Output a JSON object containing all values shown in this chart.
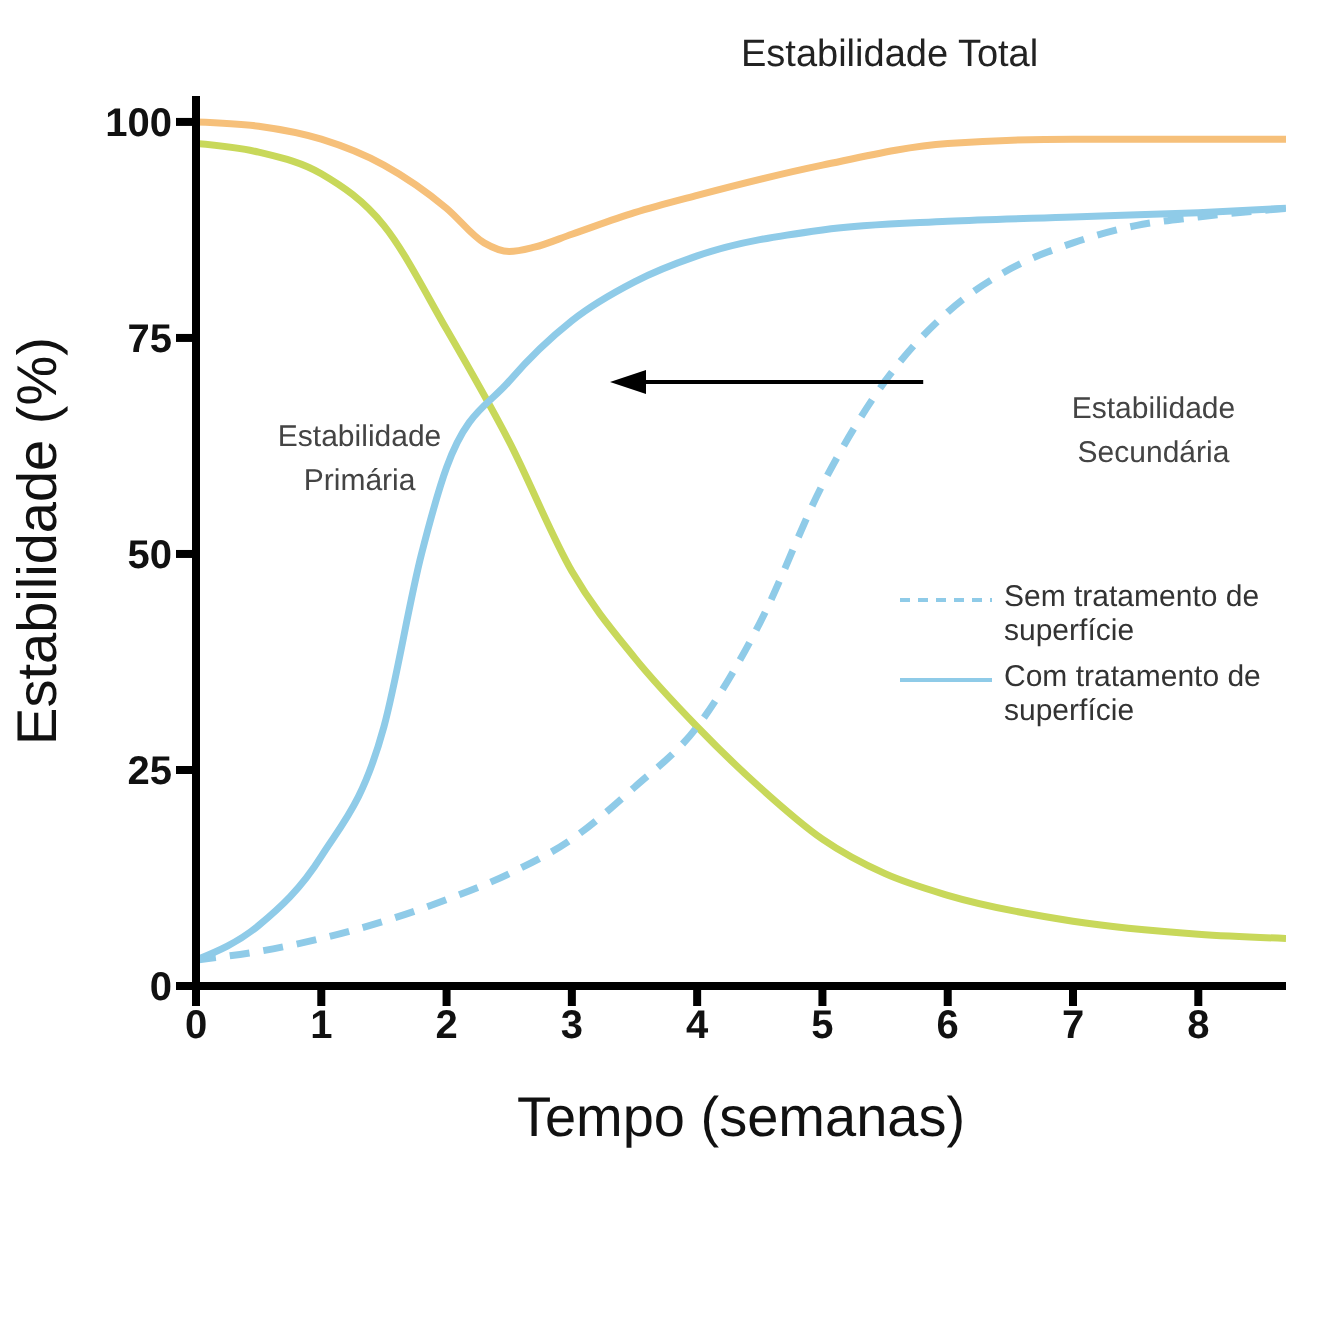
{
  "chart_data": {
    "type": "line",
    "xlabel": "Tempo (semanas)",
    "ylabel": "Estabilidade  (%)",
    "xlim": [
      0,
      8.7
    ],
    "xticks": [
      0,
      1,
      2,
      3,
      4,
      5,
      6,
      7,
      8
    ],
    "ylim": [
      0,
      103
    ],
    "yticks": [
      0,
      25,
      50,
      75,
      100
    ],
    "legend": "right",
    "marker": "none",
    "series": [
      {
        "color": "#f6c07a",
        "x": [
          0,
          0.5,
          1,
          1.5,
          2,
          2.3,
          2.5,
          2.7,
          3,
          3.5,
          4,
          5,
          6,
          7,
          8,
          8.7
        ],
        "values": [
          100,
          99.5,
          98,
          95,
          90,
          86,
          85,
          85.5,
          87,
          89.5,
          91.5,
          95,
          97.5,
          98,
          98,
          98
        ]
      },
      {
        "color": "#c8d85a",
        "x": [
          0,
          0.5,
          1,
          1.5,
          2,
          2.5,
          3,
          3.5,
          4,
          4.5,
          5,
          5.5,
          6,
          7,
          8,
          8.7
        ],
        "values": [
          97.5,
          96.5,
          94,
          88,
          76,
          63,
          48,
          38,
          30,
          23,
          17,
          13,
          10.5,
          7.5,
          6,
          5.5
        ]
      },
      {
        "name": "Sem tratamento de superfície",
        "color": "#8fcbe8",
        "line_style": "dashed",
        "x": [
          0,
          0.5,
          1,
          1.5,
          2,
          2.5,
          3,
          3.5,
          4,
          4.5,
          5,
          5.5,
          6,
          6.5,
          7,
          7.5,
          8,
          8.7
        ],
        "values": [
          3,
          4,
          5.5,
          7.5,
          10,
          13,
          17,
          23,
          30,
          42,
          58,
          70,
          78,
          83,
          86,
          88,
          89,
          90
        ]
      },
      {
        "name": "Com tratamento de superfície",
        "color": "#8fcbe8",
        "line_style": "solid",
        "x": [
          0,
          0.5,
          1,
          1.5,
          1.8,
          2,
          2.5,
          3,
          3.5,
          4,
          5,
          6,
          7,
          8,
          8.7
        ],
        "values": [
          3,
          7,
          15,
          30,
          50,
          60,
          70,
          77,
          81.5,
          84.5,
          87.5,
          88.5,
          89,
          89.5,
          90
        ]
      }
    ],
    "annotations": [
      "Estabilidade Total",
      "Estabilidade Primária",
      "Estabilidade Secundária"
    ]
  }
}
